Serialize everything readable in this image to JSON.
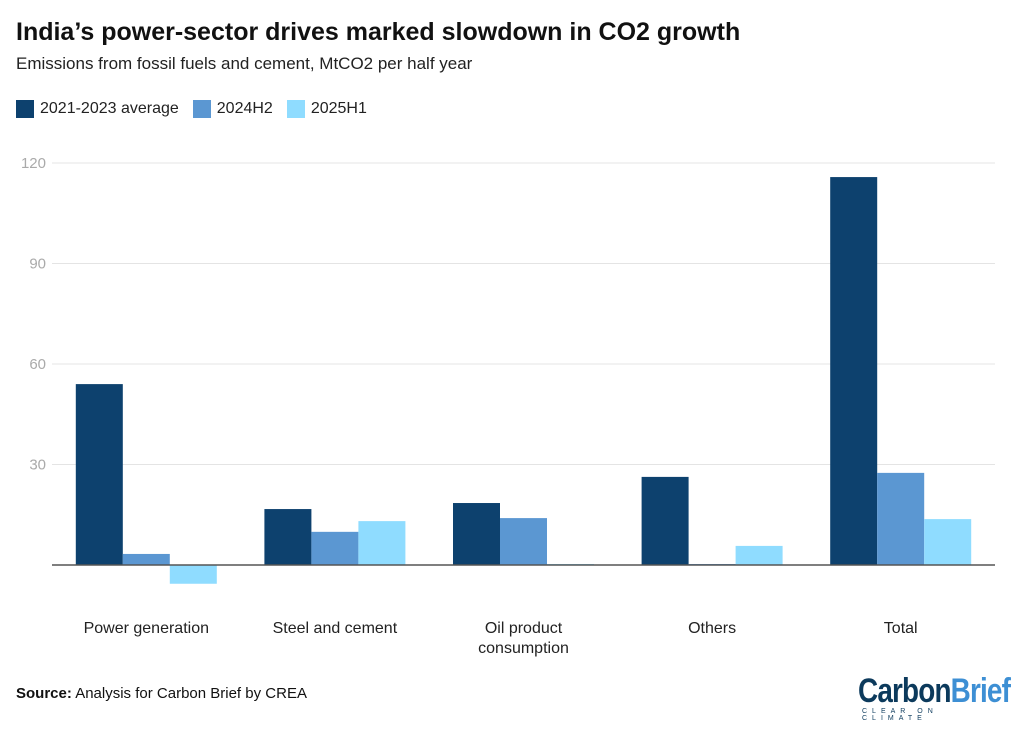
{
  "chart_data": {
    "type": "bar",
    "title": "India’s power-sector drives marked slowdown in CO2 growth",
    "subtitle": "Emissions from fossil fuels and cement, MtCO2 per half year",
    "categories": [
      "Power generation",
      "Steel and cement",
      "Oil product consumption",
      "Others",
      "Total"
    ],
    "series": [
      {
        "name": "2021-2023 average",
        "color": "#0d416e",
        "values": [
          54.0,
          16.7,
          18.5,
          26.3,
          115.8
        ]
      },
      {
        "name": "2024H2",
        "color": "#5b97d2",
        "values": [
          3.3,
          9.9,
          14.0,
          0.3,
          27.5
        ]
      },
      {
        "name": "2025H1",
        "color": "#8fdcff",
        "values": [
          -5.6,
          13.1,
          0.3,
          5.7,
          13.7
        ]
      }
    ],
    "yticks": [
      30,
      60,
      90,
      120
    ],
    "ylim": [
      -10,
      120
    ],
    "grid": true,
    "legend": "top-left",
    "xlabel": "",
    "ylabel": ""
  },
  "source_label": "Source:",
  "source_text": " Analysis for Carbon Brief by CREA",
  "logo": {
    "carbon": "Carbon",
    "brief": "Brief",
    "tagline": "CLEAR ON CLIMATE"
  }
}
